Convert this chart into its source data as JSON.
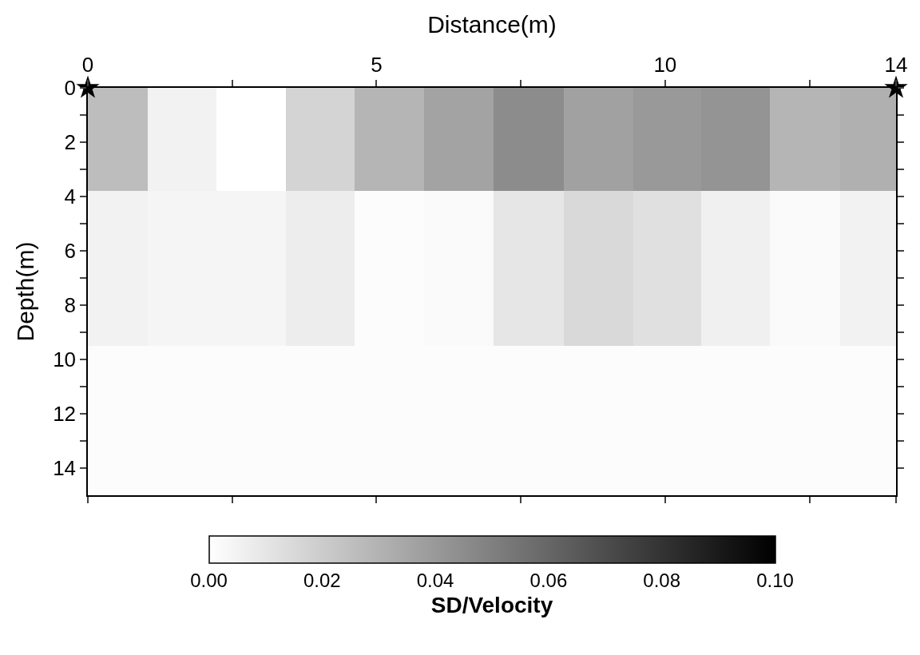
{
  "chart_data": {
    "type": "heatmap",
    "xlabel": "Distance(m)",
    "ylabel": "Depth(m)",
    "clabel": "SD/Velocity",
    "x": [
      0.52,
      1.56,
      2.9,
      3.96,
      5.28,
      6.38,
      7.68,
      8.8,
      10.1,
      11.16,
      12.48,
      13.58
    ],
    "y": [
      1.9,
      5.7,
      13.3
    ],
    "cells": [
      [
        0.026,
        0.005,
        0.0,
        0.017,
        0.029,
        0.036,
        0.045,
        0.037,
        0.04,
        0.042,
        0.029,
        0.031
      ],
      [
        0.005,
        0.004,
        0.004,
        0.007,
        0.001,
        0.002,
        0.01,
        0.015,
        0.012,
        0.006,
        0.002,
        0.005
      ],
      [
        0.001,
        0.001,
        0.001,
        0.001,
        0.001,
        0.001,
        0.001,
        0.001,
        0.001,
        0.001,
        0.001,
        0.001
      ]
    ],
    "xlim": [
      0,
      14
    ],
    "ylim": [
      15,
      0
    ],
    "xticks": [
      0,
      {
        "value": 2.5,
        "label": null
      },
      5,
      {
        "value": 7.5,
        "label": null
      },
      10,
      {
        "value": 12.5,
        "label": null
      },
      14
    ],
    "yticks": [
      0,
      {
        "value": 1,
        "label": null
      },
      2,
      {
        "value": 3,
        "label": null
      },
      4,
      {
        "value": 5,
        "label": null
      },
      6,
      {
        "value": 7,
        "label": null
      },
      8,
      {
        "value": 9,
        "label": null
      },
      10,
      {
        "value": 11,
        "label": null
      },
      12,
      {
        "value": 13,
        "label": null
      },
      14
    ],
    "clim": [
      0.0,
      0.1
    ],
    "cticks": [
      {
        "value": 0,
        "label": "0.00"
      },
      {
        "value": 0.02,
        "label": "0.02"
      },
      {
        "value": 0.04,
        "label": "0.04"
      },
      {
        "value": 0.06,
        "label": "0.06"
      },
      {
        "value": 0.08,
        "label": "0.08"
      },
      {
        "value": 0.1,
        "label": "0.10"
      }
    ],
    "series": [
      {
        "type": "scatter",
        "x": [
          0,
          14
        ],
        "values": [
          0,
          0
        ],
        "color": "#000000",
        "marker": "star"
      }
    ]
  }
}
